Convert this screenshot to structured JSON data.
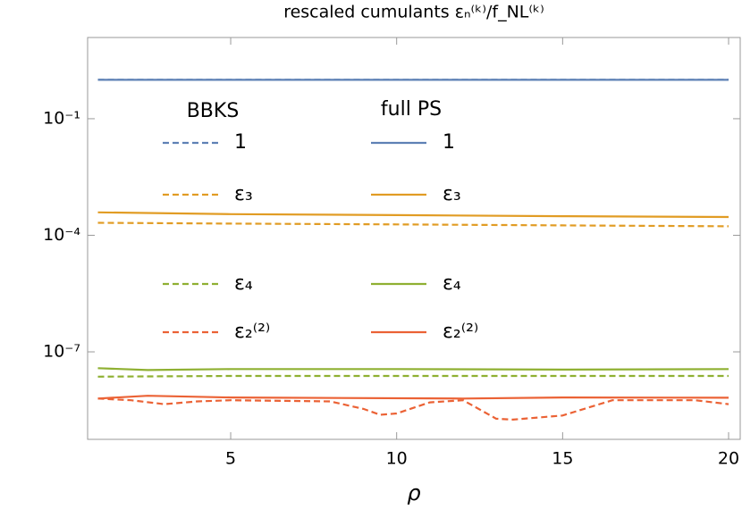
{
  "chart_data": {
    "type": "line",
    "title": "rescaled cumulants εₙ⁽ᵏ⁾/f_NL⁽ᵏ⁾",
    "x_label": "ρ",
    "legend_titles": [
      "BBKS",
      "full PS"
    ],
    "log_y": true,
    "xlim": [
      0.69,
      20.35
    ],
    "ylim": [
      12.3,
      5.6e-10
    ],
    "xticks": [
      5,
      10,
      15,
      20
    ],
    "yticks": [
      {
        "value": 0.1,
        "label": "10⁻¹"
      },
      {
        "value": 0.0001,
        "label": "10⁻⁴"
      },
      {
        "value": 1e-07,
        "label": "10⁻⁷"
      }
    ],
    "series": [
      {
        "name": "1",
        "color": "#5e81b5",
        "dashed": true,
        "x": [
          1,
          20
        ],
        "values": [
          1,
          1
        ]
      },
      {
        "name": "ε₃",
        "color": "#e19c24",
        "dashed": true,
        "x": [
          1,
          5,
          10,
          15,
          20
        ],
        "values": [
          0.00021,
          0.0002,
          0.00019,
          0.00018,
          0.00017
        ]
      },
      {
        "name": "ε₄",
        "color": "#8fb032",
        "dashed": true,
        "x": [
          1,
          5,
          10,
          15,
          20
        ],
        "values": [
          2.3e-08,
          2.4e-08,
          2.4e-08,
          2.4e-08,
          2.4e-08
        ]
      },
      {
        "name": "ε₂⁽²⁾",
        "color": "#eb6235",
        "dashed": true,
        "x": [
          1,
          2,
          3,
          4,
          5,
          8,
          9,
          9.5,
          10,
          11,
          12,
          13,
          13.5,
          15,
          16.5,
          19,
          20
        ],
        "values": [
          6.3e-09,
          5.7e-09,
          4.5e-09,
          5.3e-09,
          5.7e-09,
          5.3e-09,
          3.4e-09,
          2.4e-09,
          2.6e-09,
          5e-09,
          5.7e-09,
          1.9e-09,
          1.8e-09,
          2.3e-09,
          5.7e-09,
          5.7e-09,
          4.5e-09
        ]
      },
      {
        "name": "1",
        "color": "#5e81b5",
        "dashed": false,
        "x": [
          1,
          20
        ],
        "values": [
          1,
          1
        ]
      },
      {
        "name": "ε₃",
        "color": "#e19c24",
        "dashed": false,
        "x": [
          1,
          5,
          10,
          15,
          20
        ],
        "values": [
          0.00039,
          0.00035,
          0.00033,
          0.00031,
          0.000295
        ]
      },
      {
        "name": "ε₄",
        "color": "#8fb032",
        "dashed": false,
        "x": [
          1,
          2.5,
          5,
          10,
          15,
          20
        ],
        "values": [
          3.8e-08,
          3.4e-08,
          3.6e-08,
          3.6e-08,
          3.5e-08,
          3.6e-08
        ]
      },
      {
        "name": "ε₂⁽²⁾",
        "color": "#eb6235",
        "dashed": false,
        "x": [
          1,
          2.5,
          5,
          12,
          15,
          20
        ],
        "values": [
          6.3e-09,
          7.4e-09,
          6.7e-09,
          6.3e-09,
          6.7e-09,
          6.6e-09
        ]
      }
    ]
  }
}
